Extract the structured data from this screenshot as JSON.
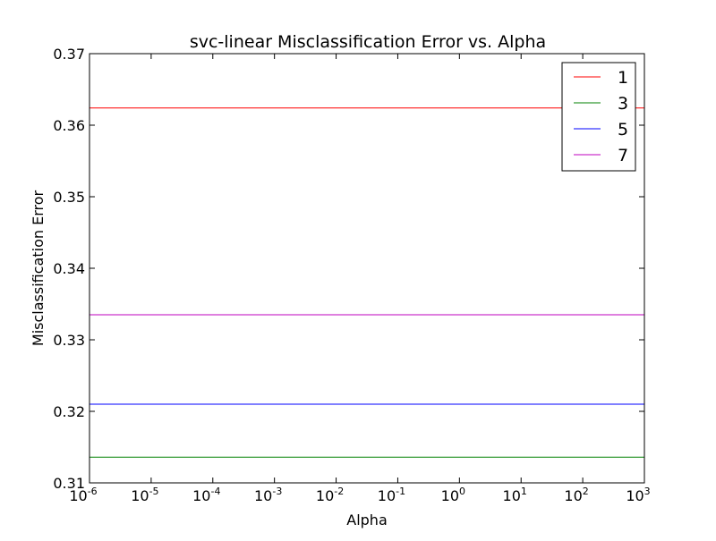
{
  "chart_data": {
    "type": "line",
    "title": "svc-linear Misclassification Error vs. Alpha",
    "xlabel": "Alpha",
    "ylabel": "Misclassification Error",
    "xscale": "log",
    "xlim": [
      1e-06,
      1000
    ],
    "ylim": [
      0.31,
      0.37
    ],
    "grid": false,
    "legend_position": "top-right",
    "x_ticks": [
      {
        "base": "10",
        "exp": "-6"
      },
      {
        "base": "10",
        "exp": "-5"
      },
      {
        "base": "10",
        "exp": "-4"
      },
      {
        "base": "10",
        "exp": "-3"
      },
      {
        "base": "10",
        "exp": "-2"
      },
      {
        "base": "10",
        "exp": "-1"
      },
      {
        "base": "10",
        "exp": "0"
      },
      {
        "base": "10",
        "exp": "1"
      },
      {
        "base": "10",
        "exp": "2"
      },
      {
        "base": "10",
        "exp": "3"
      }
    ],
    "y_ticks": [
      "0.31",
      "0.32",
      "0.33",
      "0.34",
      "0.35",
      "0.36",
      "0.37"
    ],
    "x": [
      1e-06,
      1e-05,
      0.0001,
      0.001,
      0.01,
      0.1,
      1,
      10,
      100,
      1000
    ],
    "series": [
      {
        "name": "1",
        "color": "#ff0000",
        "values": [
          0.3624,
          0.3624,
          0.3624,
          0.3624,
          0.3624,
          0.3624,
          0.3624,
          0.3624,
          0.3624,
          0.3624
        ]
      },
      {
        "name": "3",
        "color": "#008000",
        "values": [
          0.3136,
          0.3136,
          0.3136,
          0.3136,
          0.3136,
          0.3136,
          0.3136,
          0.3136,
          0.3136,
          0.3136
        ]
      },
      {
        "name": "5",
        "color": "#0000ff",
        "values": [
          0.321,
          0.321,
          0.321,
          0.321,
          0.321,
          0.321,
          0.321,
          0.321,
          0.321,
          0.321
        ]
      },
      {
        "name": "7",
        "color": "#bf00bf",
        "values": [
          0.3335,
          0.3335,
          0.3335,
          0.3335,
          0.3335,
          0.3335,
          0.3335,
          0.3335,
          0.3335,
          0.3335
        ]
      }
    ]
  }
}
